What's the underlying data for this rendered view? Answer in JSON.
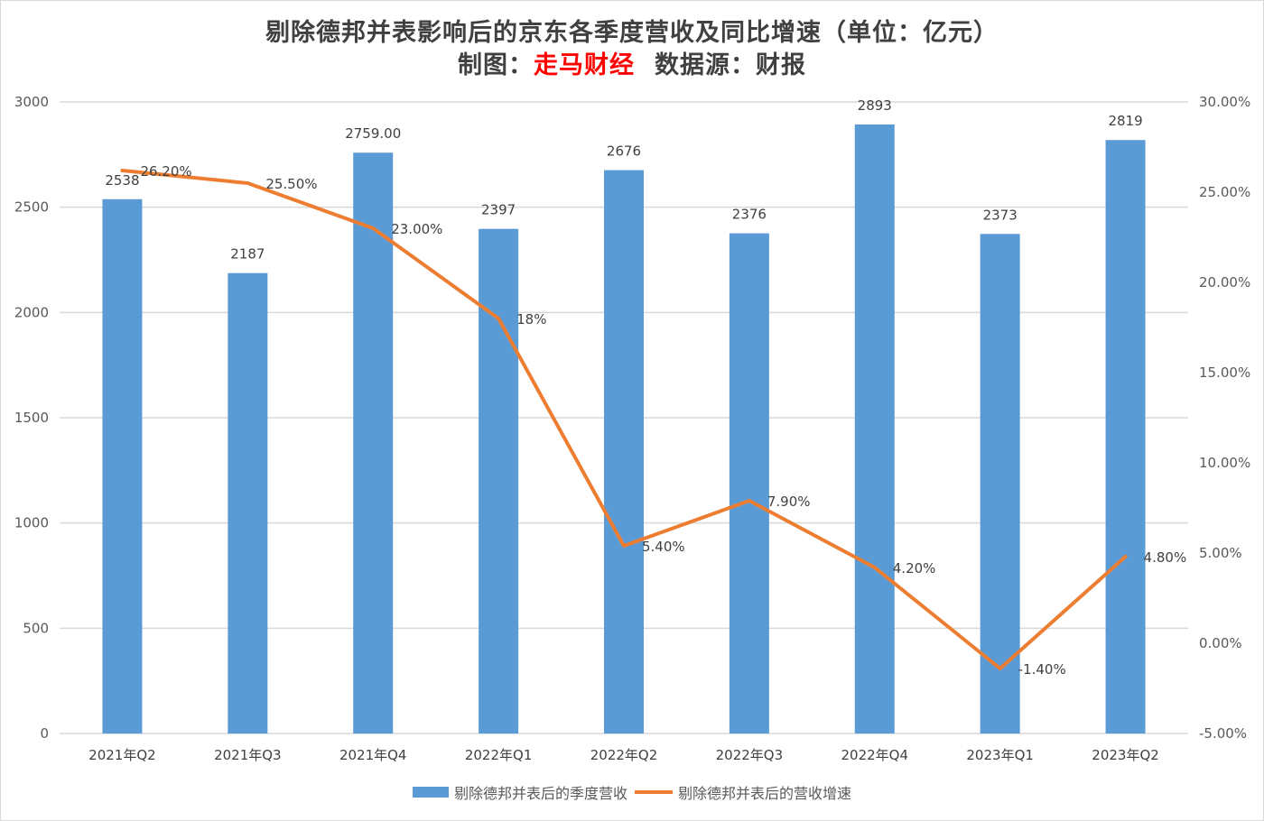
{
  "title": {
    "line1": "剔除德邦并表影响后的京东各季度营收及同比增速（单位：亿元）",
    "line2_prefix": "制图：",
    "line2_brand": "走马财经",
    "line2_suffix": "数据源：财报"
  },
  "colors": {
    "bar": "#5b9bd5",
    "line": "#ed7d31",
    "grid": "#d9d9d9",
    "brand_text": "#ff0000"
  },
  "chart_data": {
    "type": "bar",
    "categories": [
      "2021年Q2",
      "2021年Q3",
      "2021年Q4",
      "2022年Q1",
      "2022年Q2",
      "2022年Q3",
      "2022年Q4",
      "2023年Q1",
      "2023年Q2"
    ],
    "series": [
      {
        "name": "剔除德邦并表后的季度营收",
        "type": "bar",
        "axis": "left",
        "values": [
          2538,
          2187,
          2759,
          2397,
          2676,
          2376,
          2893,
          2373,
          2819
        ],
        "labels": [
          "2538",
          "2187",
          "2759.00",
          "2397",
          "2676",
          "2376",
          "2893",
          "2373",
          "2819"
        ]
      },
      {
        "name": "剔除德邦并表后的营收增速",
        "type": "line",
        "axis": "right",
        "values": [
          26.2,
          25.5,
          23.0,
          18.0,
          5.4,
          7.9,
          4.2,
          -1.4,
          4.8
        ],
        "labels": [
          "26.20%",
          "25.50%",
          "23.00%",
          "18%",
          "5.40%",
          "7.90%",
          "4.20%",
          "-1.40%",
          "4.80%"
        ]
      }
    ],
    "ylim": [
      0,
      3000
    ],
    "yticks": [
      "0",
      "500",
      "1000",
      "1500",
      "2000",
      "2500",
      "3000"
    ],
    "y2lim": [
      -5,
      30
    ],
    "y2ticks": [
      "-5.00%",
      "0.00%",
      "5.00%",
      "10.00%",
      "15.00%",
      "20.00%",
      "25.00%",
      "30.00%"
    ],
    "grid": true,
    "legend": "bottom"
  }
}
